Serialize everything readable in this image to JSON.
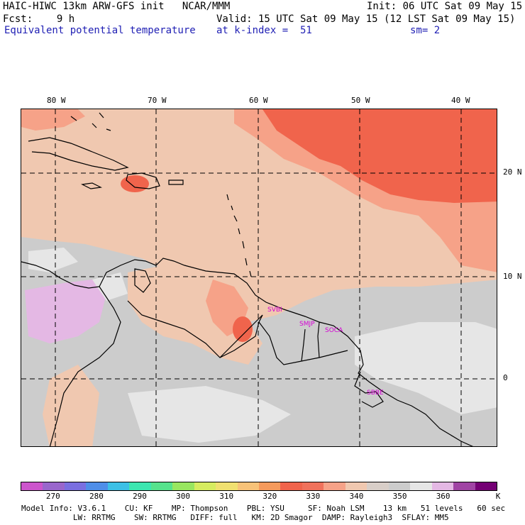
{
  "header": {
    "line1_left": "HAIC-HIWC 13km ARW-GFS init   NCAR/MMM",
    "line1_right": "Init: 06 UTC Sat 09 May 15",
    "line2_left": "Fcst:    9 h",
    "line2_right": "Valid: 15 UTC Sat 09 May 15 (12 LST Sat 09 May 15)",
    "line3_field": "Equivalent potential temperature",
    "line3_level": "at k-index =  51",
    "line3_smooth": "sm= 2"
  },
  "map": {
    "lon_labels": [
      "80 W",
      "70 W",
      "60 W",
      "50 W",
      "40 W"
    ],
    "lat_labels": [
      "20 N",
      "10 N",
      "0"
    ],
    "stations": [
      "SVBI",
      "SMJP",
      "SOCA",
      "SBBE"
    ]
  },
  "colorbar": {
    "colors": [
      "#cc55cc",
      "#9966cc",
      "#7a6fe0",
      "#4f8ee8",
      "#3cc0e6",
      "#3ce6b0",
      "#56e28c",
      "#98e660",
      "#d6ec60",
      "#f0e070",
      "#f7c278",
      "#f59a5c",
      "#f0644c",
      "#f0725c",
      "#f6a288",
      "#f0c8b0",
      "#d8cec8",
      "#cccccc",
      "#e6e6e6",
      "#e4b8e4",
      "#a044a4",
      "#740074"
    ],
    "labels": [
      "270",
      "280",
      "290",
      "300",
      "310",
      "320",
      "330",
      "340",
      "350",
      "360"
    ],
    "unit": "K"
  },
  "model_info": {
    "line1": "Model Info: V3.6.1    CU: KF    MP: Thompson    PBL: YSU     SF: Noah LSM    13 km   51 levels   60 sec",
    "line2": "           LW: RRTMG    SW: RRTMG   DIFF: full   KM: 2D Smagor  DAMP: Rayleigh3  SFLAY: MM5"
  }
}
